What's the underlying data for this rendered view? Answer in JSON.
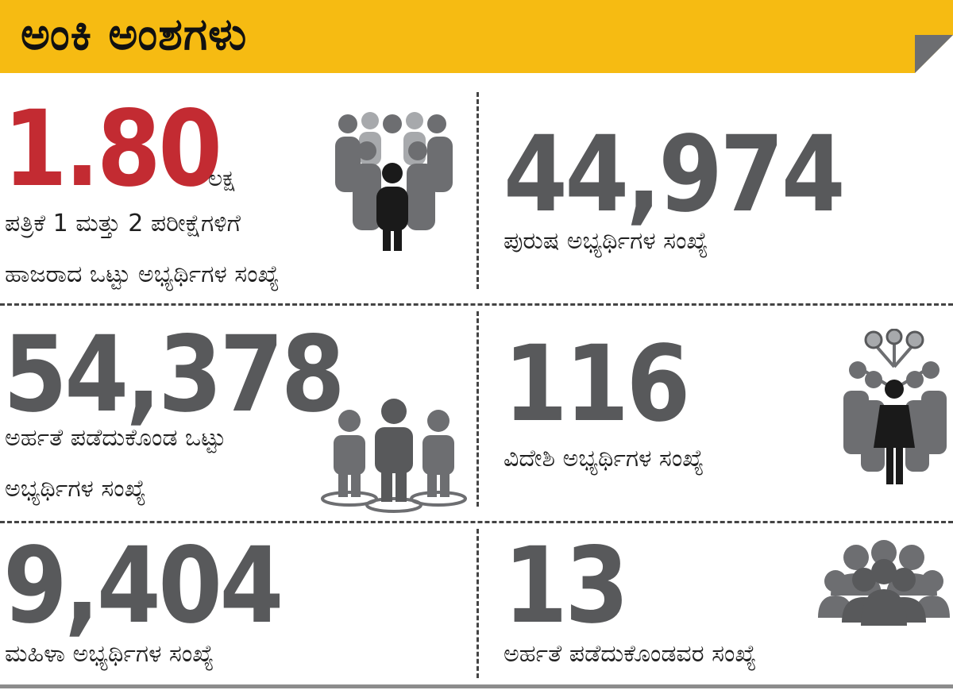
{
  "header": {
    "title": "ಅಂಕಿ ಅಂಶಗಳು"
  },
  "stats": {
    "total": {
      "value": "1.80",
      "unit": "ಲಕ್ಷ",
      "caption_line1": "ಪತ್ರಿಕೆ 1 ಮತ್ತು 2 ಪರೀಕ್ಷೆಗಳಿಗೆ",
      "caption_line2": "ಹಾಜರಾದ ಒಟ್ಟು ಅಭ್ಯರ್ಥಿಗಳ ಸಂಖ್ಯೆ",
      "icon": "crowd-leader-icon"
    },
    "male": {
      "value": "44,974",
      "caption": "ಪುರುಷ ಅಭ್ಯರ್ಥಿಗಳ ಸಂಖ್ಯೆ"
    },
    "qualified": {
      "value": "54,378",
      "caption_line1": "ಅರ್ಹತೆ ಪಡೆದುಕೊಂಡ ಒಟ್ಟು",
      "caption_line2": "ಅಭ್ಯರ್ಥಿಗಳ ಸಂಖ್ಯೆ",
      "icon": "three-people-icon"
    },
    "foreign": {
      "value": "116",
      "caption": "ವಿದೇಶಿ ಅಭ್ಯರ್ಥಿಗಳ ಸಂಖ್ಯೆ",
      "icon": "network-people-icon"
    },
    "female": {
      "value": "9,404",
      "caption": "ಮಹಿಳಾ ಅಭ್ಯರ್ಥಿಗಳ ಸಂಖ್ಯೆ"
    },
    "qualified_others": {
      "value": "13",
      "caption": "ಅರ್ಹತೆ ಪಡೆದುಕೊಂಡವರ ಸಂಖ್ಯೆ",
      "icon": "group-icon"
    }
  },
  "colors": {
    "header_bg": "#f6bb12",
    "highlight_red": "#c32b32",
    "number_gray": "#58595b",
    "icon_gray": "#6d6e71",
    "icon_light": "#a7a9ac",
    "icon_dark": "#1a1a1a"
  }
}
